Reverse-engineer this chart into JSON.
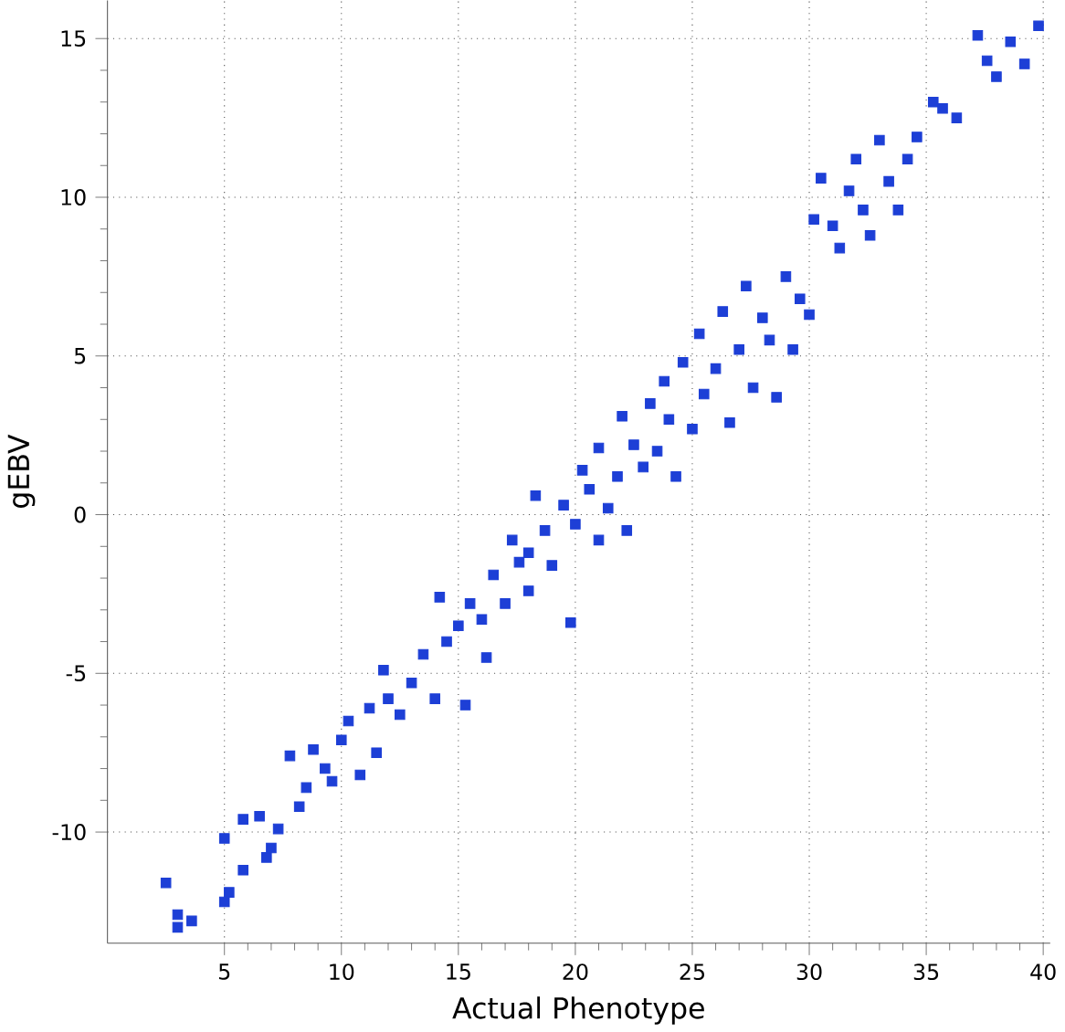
{
  "chart_data": {
    "type": "scatter",
    "xlabel": "Actual Phenotype",
    "ylabel": "gEBV",
    "xlim": [
      0,
      40.3
    ],
    "ylim": [
      -13.5,
      16.2
    ],
    "xticks": [
      5,
      10,
      15,
      20,
      25,
      30,
      35,
      40
    ],
    "yticks": [
      -10,
      -5,
      0,
      5,
      10,
      15
    ],
    "grid": true,
    "marker": "square",
    "series": [
      {
        "color": "#1d3fd6",
        "x": [
          2.5,
          3,
          3,
          3.6,
          5,
          5.2,
          5,
          5.8,
          6.5,
          5.8,
          6.8,
          7,
          7.3,
          7.8,
          8.2,
          8.5,
          8.8,
          9.3,
          9.6,
          10,
          10.3,
          10.8,
          11.2,
          11.5,
          11.8,
          12,
          12.5,
          13,
          13.5,
          14,
          14.2,
          14.5,
          15,
          15.3,
          15.5,
          16,
          16.2,
          16.5,
          17,
          17.3,
          17.6,
          18,
          18,
          18.3,
          18.7,
          19,
          19.5,
          19.8,
          20,
          20.3,
          20.6,
          21,
          21,
          21.4,
          21.8,
          22,
          22.2,
          22.5,
          22.9,
          23.2,
          23.5,
          23.8,
          24,
          24.3,
          24.6,
          25,
          25.3,
          25.5,
          26,
          26.3,
          26.6,
          27,
          27.3,
          27.6,
          28,
          28.3,
          28.6,
          29,
          29.3,
          29.6,
          30,
          30.2,
          30.5,
          31,
          31.3,
          31.7,
          32,
          32.3,
          32.6,
          33,
          33.4,
          33.8,
          34.2,
          34.6,
          35.3,
          35.7,
          36.3,
          37.2,
          37.6,
          38,
          38.6,
          39.2,
          39.8
        ],
        "values": [
          -11.6,
          -12.6,
          -13,
          -12.8,
          -12.2,
          -11.9,
          -10.2,
          -9.6,
          -9.5,
          -11.2,
          -10.8,
          -10.5,
          -9.9,
          -7.6,
          -9.2,
          -8.6,
          -7.4,
          -8,
          -8.4,
          -7.1,
          -6.5,
          -8.2,
          -6.1,
          -7.5,
          -4.9,
          -5.8,
          -6.3,
          -5.3,
          -4.4,
          -5.8,
          -2.6,
          -4,
          -3.5,
          -6,
          -2.8,
          -3.3,
          -4.5,
          -1.9,
          -2.8,
          -0.8,
          -1.5,
          -1.2,
          -2.4,
          0.6,
          -0.5,
          -1.6,
          0.3,
          -3.4,
          -0.3,
          1.4,
          0.8,
          -0.8,
          2.1,
          0.2,
          1.2,
          3.1,
          -0.5,
          2.2,
          1.5,
          3.5,
          2,
          4.2,
          3,
          1.2,
          4.8,
          2.7,
          5.7,
          3.8,
          4.6,
          6.4,
          2.9,
          5.2,
          7.2,
          4,
          6.2,
          5.5,
          3.7,
          7.5,
          5.2,
          6.8,
          6.3,
          9.3,
          10.6,
          9.1,
          8.4,
          10.2,
          11.2,
          9.6,
          8.8,
          11.8,
          10.5,
          9.6,
          11.2,
          11.9,
          13,
          12.8,
          12.5,
          15.1,
          14.3,
          13.8,
          14.9,
          14.2,
          15.4
        ]
      }
    ]
  }
}
